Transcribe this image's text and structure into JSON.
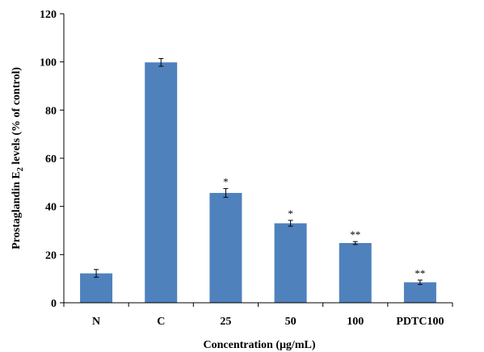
{
  "chart_data": {
    "type": "bar",
    "categories": [
      "N",
      "C",
      "25",
      "50",
      "100",
      "PDTC100"
    ],
    "values": [
      12.2,
      99.8,
      45.6,
      33.0,
      24.8,
      8.5
    ],
    "errors": [
      1.6,
      1.6,
      1.8,
      1.2,
      0.6,
      0.9
    ],
    "significance": [
      "",
      "",
      "*",
      "*",
      "**",
      "**"
    ],
    "xlabel": "Concentration (μg/mL)",
    "ylabel_pre": "Prostaglandin E",
    "ylabel_sub": "2",
    "ylabel_post": " levels (% of control)",
    "ylim": [
      0,
      120
    ],
    "yticks": [
      "0",
      "20",
      "40",
      "60",
      "80",
      "100",
      "120"
    ],
    "bar_color": "#4f81bd",
    "grid": false
  }
}
